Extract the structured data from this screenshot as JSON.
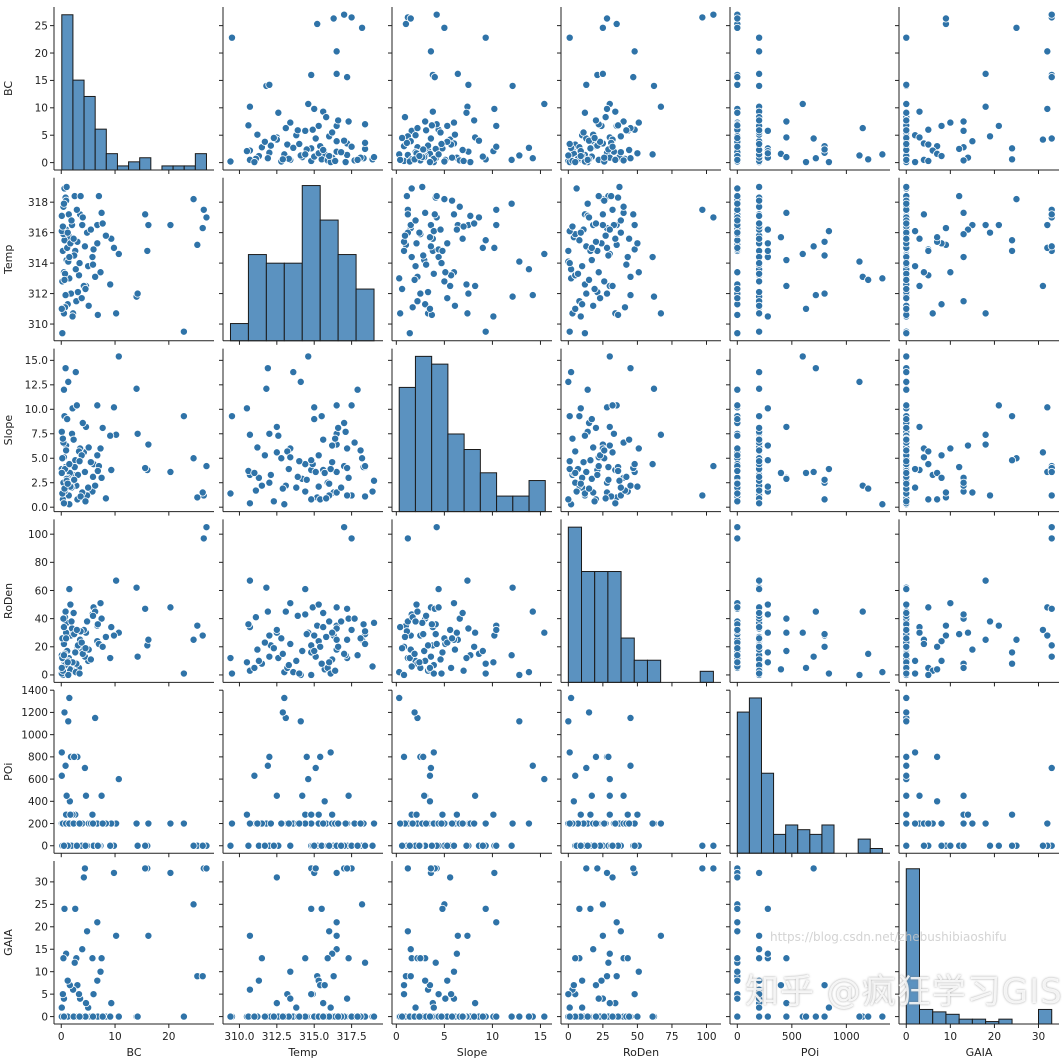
{
  "chart_data": {
    "type": "pairplot",
    "variables": [
      "BC",
      "Temp",
      "Slope",
      "RoDen",
      "POI",
      "GAIA"
    ],
    "axis_labels": [
      "BC",
      "Temp",
      "Slope",
      "RoDen",
      "POi",
      "GAIA"
    ],
    "limits": {
      "BC": [
        -1.35,
        28.4
      ],
      "Temp": [
        308.9,
        319.6
      ],
      "Slope": [
        -0.45,
        16.2
      ],
      "RoDen": [
        -5.3,
        110.5
      ],
      "POI": [
        -67,
        1400
      ],
      "GAIA": [
        -1.65,
        34.65
      ]
    },
    "y_ticks": {
      "BC": [
        0,
        5,
        10,
        15,
        20,
        25
      ],
      "Temp": [
        310,
        312,
        314,
        316,
        318
      ],
      "Slope": [
        0.0,
        2.5,
        5.0,
        7.5,
        10.0,
        12.5,
        15.0
      ],
      "RoDen": [
        0,
        20,
        40,
        60,
        80,
        100
      ],
      "POI": [
        0,
        200,
        400,
        600,
        800,
        1000,
        1200,
        1400
      ],
      "GAIA": [
        0,
        5,
        10,
        15,
        20,
        25,
        30
      ]
    },
    "y_tick_labels": {
      "BC": [
        "0",
        "5",
        "10",
        "15",
        "20",
        "25"
      ],
      "Temp": [
        "310",
        "312",
        "314",
        "316",
        "318"
      ],
      "Slope": [
        "0.0",
        "2.5",
        "5.0",
        "7.5",
        "10.0",
        "12.5",
        "15.0"
      ],
      "RoDen": [
        "0",
        "20",
        "40",
        "60",
        "80",
        "100"
      ],
      "POI": [
        "0",
        "200",
        "400",
        "600",
        "800",
        "1000",
        "1200",
        "1400"
      ],
      "GAIA": [
        "0",
        "5",
        "10",
        "15",
        "20",
        "25",
        "30"
      ]
    },
    "x_ticks": {
      "BC": [
        0,
        10,
        20
      ],
      "Temp": [
        310.0,
        312.5,
        315.0,
        317.5
      ],
      "Slope": [
        0,
        5,
        10,
        15
      ],
      "RoDen": [
        0,
        25,
        50,
        75,
        100
      ],
      "POI": [
        0,
        500,
        1000
      ],
      "GAIA": [
        0,
        10,
        20,
        30
      ]
    },
    "x_tick_labels": {
      "BC": [
        "0",
        "10",
        "20"
      ],
      "Temp": [
        "310.0",
        "312.5",
        "315.0",
        "317.5"
      ],
      "Slope": [
        "0",
        "5",
        "10",
        "15"
      ],
      "RoDen": [
        "0",
        "25",
        "50",
        "75",
        "100"
      ],
      "POI": [
        "0",
        "500",
        "1000"
      ],
      "GAIA": [
        "0",
        "10",
        "20",
        "30"
      ]
    },
    "histograms": {
      "BC": {
        "range": [
          0.1,
          27.0
        ],
        "counts": [
          38,
          22,
          18,
          10,
          4,
          1,
          2,
          3,
          0,
          1,
          1,
          1,
          4
        ]
      },
      "Temp": {
        "range": [
          309.4,
          319.0
        ],
        "counts": [
          2,
          10,
          9,
          9,
          18,
          14,
          10,
          6
        ]
      },
      "Slope": {
        "range": [
          0.3,
          15.5
        ],
        "counts": [
          16,
          20,
          19,
          10,
          8,
          5,
          2,
          2,
          4
        ]
      },
      "RoDen": {
        "range": [
          0,
          105
        ],
        "counts": [
          14,
          10,
          10,
          10,
          4,
          2,
          2,
          0,
          0,
          0,
          1
        ]
      },
      "POI": {
        "range": [
          0,
          1330
        ],
        "counts": [
          30,
          33,
          17,
          4,
          6,
          5,
          4,
          6,
          0,
          0,
          3,
          1
        ]
      },
      "GAIA": {
        "range": [
          0,
          33
        ],
        "counts": [
          64,
          6,
          5,
          4,
          2,
          2,
          1,
          2,
          0,
          0,
          6
        ]
      }
    },
    "records_columns": [
      "BC",
      "Temp",
      "Slope",
      "RoDen",
      "POI",
      "GAIA"
    ],
    "records": [
      [
        1.5,
        313.0,
        0.3,
        2,
        1330,
        0
      ],
      [
        22.8,
        309.5,
        9.3,
        1,
        200,
        0
      ],
      [
        26.5,
        317.5,
        1.2,
        97,
        0,
        33
      ],
      [
        27.0,
        317.0,
        4.2,
        105,
        0,
        33
      ],
      [
        25.3,
        315.2,
        1.0,
        35,
        0,
        9
      ],
      [
        26.3,
        316.3,
        1.5,
        28,
        0,
        9
      ],
      [
        24.6,
        318.2,
        5.0,
        25,
        0,
        25
      ],
      [
        20.3,
        316.5,
        3.6,
        48,
        200,
        32
      ],
      [
        16.0,
        314.8,
        3.8,
        21,
        0,
        33
      ],
      [
        16.2,
        316.5,
        6.4,
        25,
        200,
        18
      ],
      [
        15.6,
        317.2,
        4.0,
        47,
        0,
        33
      ],
      [
        14.0,
        311.8,
        12.1,
        62,
        200,
        0
      ],
      [
        14.2,
        312.0,
        7.5,
        13,
        0,
        0
      ],
      [
        10.7,
        314.6,
        15.4,
        30,
        600,
        0
      ],
      [
        10.2,
        310.7,
        7.4,
        67,
        200,
        18
      ],
      [
        9.8,
        315.0,
        10.2,
        28,
        0,
        32
      ],
      [
        9.3,
        315.6,
        3.8,
        34,
        200,
        3
      ],
      [
        7.5,
        317.3,
        3.0,
        40,
        450,
        13
      ],
      [
        7.3,
        313.4,
        6.0,
        51,
        0,
        10
      ],
      [
        6.7,
        316.5,
        10.4,
        35,
        0,
        21
      ],
      [
        6.7,
        315.3,
        5.3,
        24,
        200,
        8
      ],
      [
        6.0,
        314.9,
        4.4,
        48,
        0,
        5
      ],
      [
        5.8,
        314.4,
        1.6,
        43,
        280,
        13
      ],
      [
        5.0,
        313.8,
        2.0,
        10,
        200,
        2
      ],
      [
        4.8,
        316.0,
        1.2,
        38,
        0,
        19
      ],
      [
        4.6,
        312.5,
        8.2,
        30,
        450,
        3
      ],
      [
        4.4,
        315.1,
        3.6,
        13,
        700,
        33
      ],
      [
        4.2,
        312.5,
        5.6,
        32,
        0,
        31
      ],
      [
        3.9,
        316.5,
        1.5,
        18,
        200,
        15
      ],
      [
        3.5,
        317.2,
        6.0,
        25,
        0,
        4
      ],
      [
        3.3,
        313.2,
        5.7,
        5,
        200,
        5
      ],
      [
        3.0,
        315.4,
        0.8,
        20,
        800,
        7
      ],
      [
        2.8,
        311.5,
        2.2,
        8,
        200,
        13
      ],
      [
        2.6,
        314.8,
        4.8,
        16,
        280,
        24
      ],
      [
        2.5,
        318.4,
        4.1,
        29,
        0,
        12
      ],
      [
        2.2,
        310.7,
        3.3,
        3,
        200,
        6
      ],
      [
        2.0,
        316.5,
        7.5,
        33,
        200,
        0
      ],
      [
        1.8,
        312.0,
        2.5,
        28,
        800,
        0
      ],
      [
        1.6,
        315.7,
        3.5,
        4,
        400,
        7
      ],
      [
        1.4,
        317.2,
        1.2,
        12,
        200,
        0
      ],
      [
        1.2,
        311.3,
        3.0,
        10,
        0,
        8
      ],
      [
        1.0,
        314.2,
        2.9,
        17,
        450,
        0
      ],
      [
        0.9,
        316.2,
        6.3,
        30,
        280,
        14
      ],
      [
        0.8,
        318.3,
        4.1,
        36,
        200,
        0
      ],
      [
        0.7,
        311.1,
        1.7,
        41,
        200,
        0
      ],
      [
        0.6,
        315.5,
        9.3,
        8,
        0,
        24
      ],
      [
        0.5,
        313.4,
        5.1,
        22,
        200,
        4
      ],
      [
        0.4,
        315.9,
        2.5,
        5,
        0,
        13
      ],
      [
        0.3,
        314.8,
        0.8,
        0,
        200,
        5
      ],
      [
        0.2,
        312.8,
        5.0,
        26,
        200,
        0
      ],
      [
        0.1,
        316.1,
        3.9,
        1,
        840,
        2
      ],
      [
        0.1,
        317.1,
        7.7,
        14,
        200,
        0
      ],
      [
        0.6,
        318.9,
        1.6,
        6,
        0,
        0
      ],
      [
        1.0,
        319.0,
        2.7,
        37,
        200,
        0
      ],
      [
        2.1,
        310.5,
        10.1,
        9,
        280,
        0
      ],
      [
        3.6,
        318.4,
        1.1,
        31,
        0,
        0
      ],
      [
        5.1,
        311.2,
        6.1,
        18,
        200,
        0
      ],
      [
        6.3,
        313.1,
        2.2,
        45,
        1150,
        0
      ],
      [
        7.0,
        318.4,
        4.2,
        22,
        0,
        0
      ],
      [
        8.3,
        315.8,
        0.9,
        27,
        200,
        0
      ],
      [
        9.1,
        312.6,
        7.3,
        12,
        0,
        0
      ],
      [
        1.3,
        314.1,
        12.8,
        0,
        1120,
        0
      ],
      [
        0.8,
        311.9,
        14.2,
        45,
        720,
        0
      ],
      [
        2.7,
        313.6,
        13.8,
        2,
        200,
        0
      ],
      [
        4.0,
        317.0,
        8.6,
        15,
        0,
        0
      ],
      [
        0.5,
        310.7,
        0.4,
        34,
        200,
        0
      ],
      [
        1.9,
        316.8,
        2.0,
        38,
        0,
        0
      ],
      [
        3.1,
        312.1,
        3.3,
        21,
        200,
        0
      ],
      [
        0.2,
        309.4,
        1.4,
        12,
        0,
        0
      ],
      [
        5.5,
        316.2,
        4.6,
        11,
        200,
        0
      ],
      [
        1.1,
        315.0,
        9.0,
        17,
        0,
        0
      ],
      [
        0.4,
        317.7,
        6.6,
        40,
        200,
        0
      ],
      [
        2.4,
        314.5,
        2.8,
        29,
        800,
        0
      ],
      [
        0.7,
        313.3,
        3.9,
        7,
        200,
        0
      ],
      [
        3.8,
        311.7,
        5.3,
        23,
        0,
        0
      ],
      [
        1.7,
        315.3,
        2.1,
        50,
        280,
        0
      ],
      [
        0.3,
        316.4,
        7.0,
        3,
        200,
        0
      ],
      [
        6.8,
        310.6,
        3.7,
        36,
        0,
        0
      ],
      [
        0.9,
        318.1,
        5.8,
        26,
        200,
        0
      ],
      [
        4.5,
        312.3,
        0.6,
        19,
        0,
        0
      ],
      [
        1.5,
        314.4,
        4.4,
        61,
        200,
        0
      ],
      [
        2.9,
        317.5,
        10.4,
        32,
        0,
        0
      ],
      [
        0.6,
        312.9,
        1.9,
        15,
        1200,
        0
      ],
      [
        5.9,
        313.9,
        3.1,
        42,
        200,
        0
      ],
      [
        1.2,
        316.0,
        2.4,
        9,
        0,
        0
      ],
      [
        0.1,
        311.0,
        3.5,
        5,
        630,
        0
      ],
      [
        2.3,
        315.6,
        6.9,
        44,
        200,
        0
      ],
      [
        3.4,
        314.0,
        4.7,
        1,
        200,
        0
      ],
      [
        0.5,
        317.9,
        12.0,
        14,
        0,
        0
      ],
      [
        7.7,
        316.6,
        8.1,
        20,
        200,
        0
      ]
    ],
    "colors": {
      "point": "#2f73a8",
      "point_edge": "#ffffff",
      "bar": "#5b92c0",
      "bar_edge": "#1a1a1a"
    },
    "grid": false,
    "legend": "none"
  },
  "watermark": {
    "main": "知乎 @疯狂学习GIS",
    "url": "https://blog.csdn.net/zhebushibiaoshifu"
  }
}
